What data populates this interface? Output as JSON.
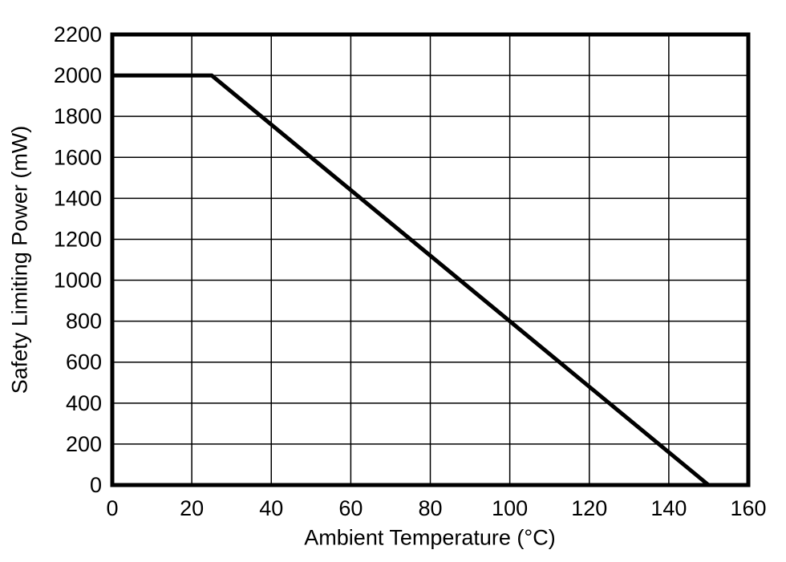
{
  "chart_data": {
    "type": "line",
    "title": "",
    "xlabel": "Ambient Temperature (°C)",
    "ylabel": "Safety Limiting Power (mW)",
    "series": [
      {
        "name": "Safety Limiting Power",
        "x": [
          0,
          25,
          150
        ],
        "y": [
          2000,
          2000,
          0
        ]
      }
    ],
    "xlim": [
      0,
      160
    ],
    "ylim": [
      0,
      2200
    ],
    "xticks": [
      0,
      20,
      40,
      60,
      80,
      100,
      120,
      140,
      160
    ],
    "yticks": [
      0,
      200,
      400,
      600,
      800,
      1000,
      1200,
      1400,
      1600,
      1800,
      2000,
      2200
    ],
    "grid": true,
    "legend": "none",
    "line_color": "#000000",
    "line_width": 5,
    "grid_color": "#000000",
    "border_color": "#000000",
    "background": "#ffffff",
    "notes": "Power derating: constant 2000 mW from 0 to 25 degC, linear derating of 16 mW per degC down to 0 mW at 150 degC"
  }
}
